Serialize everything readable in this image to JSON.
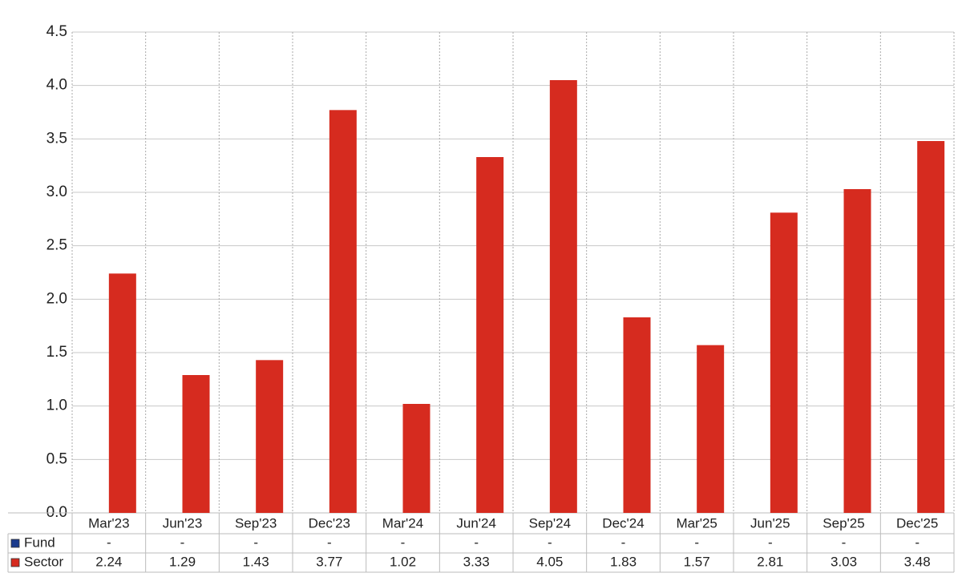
{
  "chart_data": {
    "type": "bar",
    "categories": [
      "Mar'23",
      "Jun'23",
      "Sep'23",
      "Dec'23",
      "Mar'24",
      "Jun'24",
      "Sep'24",
      "Dec'24",
      "Mar'25",
      "Jun'25",
      "Sep'25",
      "Dec'25"
    ],
    "series": [
      {
        "name": "Fund",
        "color": "#1a3a8c",
        "values": [
          null,
          null,
          null,
          null,
          null,
          null,
          null,
          null,
          null,
          null,
          null,
          null
        ],
        "value_labels": [
          "-",
          "-",
          "-",
          "-",
          "-",
          "-",
          "-",
          "-",
          "-",
          "-",
          "-",
          "-"
        ]
      },
      {
        "name": "Sector",
        "color": "#d62b1f",
        "values": [
          2.24,
          1.29,
          1.43,
          3.77,
          1.02,
          3.33,
          4.05,
          1.83,
          1.57,
          2.81,
          3.03,
          3.48
        ]
      }
    ],
    "ylim": [
      0,
      4.5
    ],
    "yticks": [
      {
        "value": 0,
        "label": "0.0"
      },
      0.5,
      {
        "value": 1,
        "label": "1.0"
      },
      1.5,
      {
        "value": 2,
        "label": "2.0"
      },
      2.5,
      {
        "value": 3,
        "label": "3.0"
      },
      3.5,
      {
        "value": 4,
        "label": "4.0"
      },
      4.5
    ],
    "grid": true
  }
}
